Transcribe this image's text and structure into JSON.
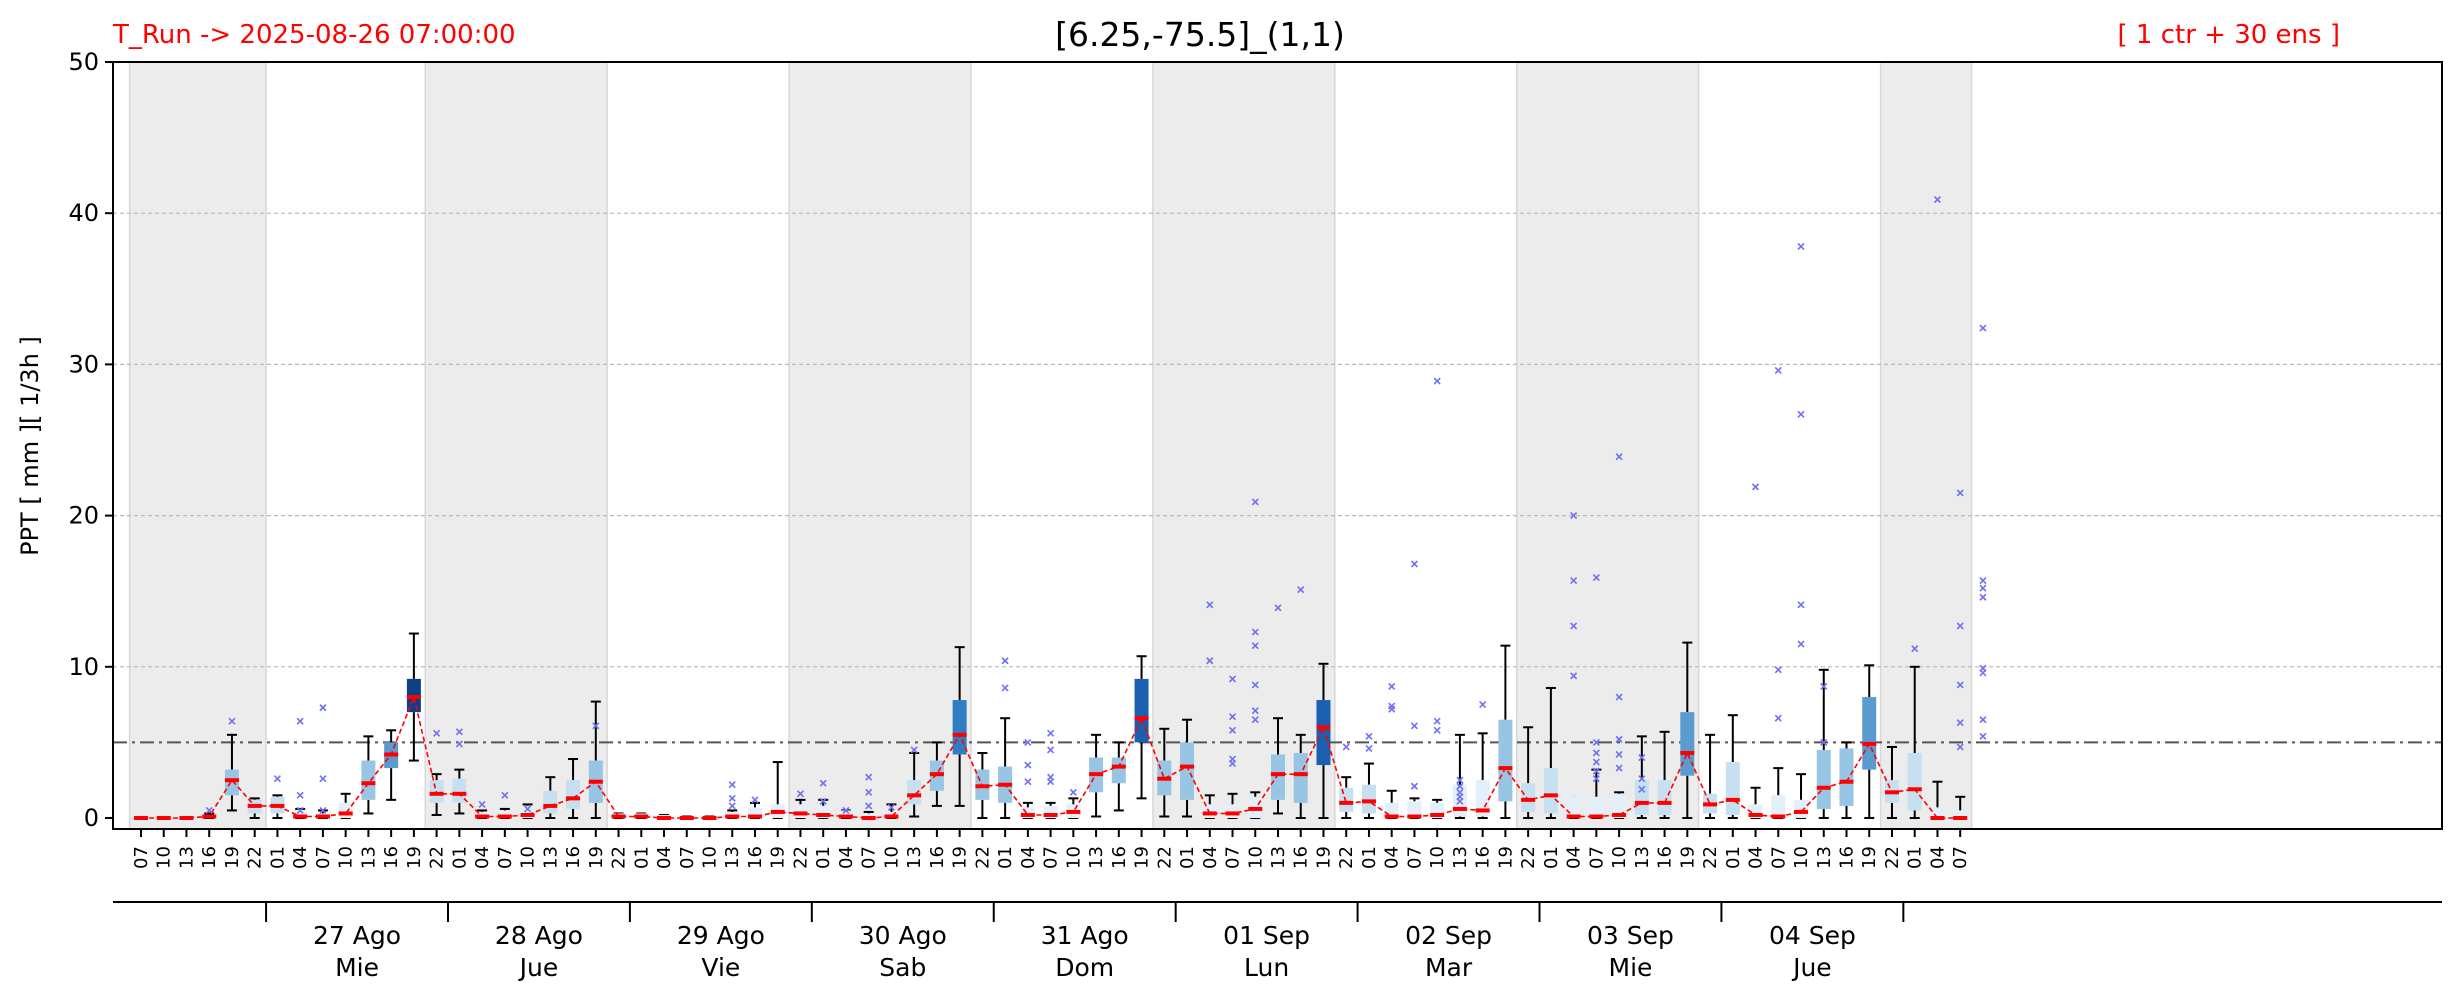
{
  "chart_data": {
    "type": "box",
    "title": "[6.25,-75.5]_(1,1)",
    "run_label": "T_Run -> 2025-08-26  07:00:00",
    "members_label": "[ 1 ctr + 30 ens ]",
    "ylabel": "PPT  [ mm ][ 1/3h ]",
    "ylim": [
      0,
      50
    ],
    "yticks": [
      0,
      10,
      20,
      30,
      40,
      50
    ],
    "threshold": 5,
    "grid": "horizontal dashed",
    "x_hours": [
      "07",
      "10",
      "13",
      "16",
      "19",
      "22",
      "01",
      "04",
      "07",
      "10",
      "13",
      "16",
      "19",
      "22",
      "01",
      "04",
      "07",
      "10",
      "13",
      "16",
      "19",
      "22",
      "01",
      "04",
      "07",
      "10",
      "13",
      "16",
      "19",
      "22",
      "01",
      "04",
      "07",
      "10",
      "13",
      "16",
      "19",
      "22",
      "01",
      "04",
      "07",
      "10",
      "13",
      "16",
      "19",
      "22",
      "01",
      "04",
      "07",
      "10",
      "13",
      "16",
      "19",
      "22",
      "01",
      "04",
      "07",
      "10",
      "13",
      "16",
      "19",
      "22",
      "01",
      "04",
      "07",
      "10",
      "13",
      "16",
      "19",
      "22",
      "01",
      "04",
      "07",
      "10",
      "13",
      "16",
      "19",
      "22",
      "01",
      "04",
      "07"
    ],
    "days": [
      {
        "date": "27 Ago",
        "weekday": "Mie"
      },
      {
        "date": "28 Ago",
        "weekday": "Jue"
      },
      {
        "date": "29 Ago",
        "weekday": "Vie"
      },
      {
        "date": "30 Ago",
        "weekday": "Sab"
      },
      {
        "date": "31 Ago",
        "weekday": "Dom"
      },
      {
        "date": "01 Sep",
        "weekday": "Lun"
      },
      {
        "date": "02 Sep",
        "weekday": "Mar"
      },
      {
        "date": "03 Sep",
        "weekday": "Mie"
      },
      {
        "date": "04 Sep",
        "weekday": "Jue"
      }
    ],
    "median": [
      0,
      0,
      0,
      0.1,
      2.5,
      0.8,
      0.8,
      0.1,
      0.1,
      0.3,
      2.3,
      4.2,
      8.0,
      1.6,
      1.6,
      0.1,
      0.1,
      0.2,
      0.8,
      1.3,
      2.4,
      0.1,
      0.1,
      0,
      0,
      0,
      0.1,
      0.1,
      0.4,
      0.3,
      0.2,
      0.1,
      0,
      0.1,
      1.5,
      2.9,
      5.5,
      2.1,
      2.2,
      0.2,
      0.2,
      0.4,
      2.9,
      3.4,
      6.6,
      2.6,
      3.4,
      0.3,
      0.3,
      0.6,
      2.9,
      2.9,
      6.0,
      1.0,
      1.1,
      0.1,
      0.1,
      0.2,
      0.6,
      0.5,
      3.3,
      1.2,
      1.5,
      0.1,
      0.1,
      0.2,
      1.0,
      1.0,
      4.3,
      0.9,
      1.2,
      0.2,
      0.1,
      0.4,
      2.0,
      2.4,
      4.9,
      1.7,
      1.9,
      0,
      0
    ],
    "q1": [
      0,
      0,
      0,
      0,
      1.5,
      0.3,
      0.3,
      0,
      0,
      0,
      1.2,
      3.3,
      7.0,
      1.0,
      1.0,
      0,
      0,
      0,
      0.3,
      0.6,
      1.0,
      0,
      0,
      0,
      0,
      0,
      0,
      0,
      0,
      0,
      0,
      0,
      0,
      0,
      0.9,
      1.8,
      4.2,
      1.2,
      1.0,
      0,
      0,
      0,
      1.7,
      2.3,
      5.0,
      1.5,
      1.2,
      0,
      0,
      0,
      1.2,
      1.0,
      3.5,
      0.4,
      0.3,
      0,
      0,
      0,
      0.1,
      0.1,
      1.1,
      0.4,
      0.3,
      0,
      0,
      0,
      0.2,
      0.2,
      2.8,
      0.3,
      0.2,
      0,
      0,
      0,
      0.6,
      0.8,
      3.2,
      1.0,
      0.5,
      0,
      0
    ],
    "q3": [
      0,
      0,
      0,
      0.2,
      3.2,
      1.2,
      1.4,
      0.5,
      0.3,
      1.0,
      3.8,
      5.0,
      9.2,
      2.5,
      2.6,
      0.4,
      0.5,
      0.8,
      1.8,
      2.5,
      3.8,
      0.3,
      0.3,
      0.2,
      0.1,
      0.1,
      0.4,
      0.7,
      0.9,
      0.9,
      0.8,
      0.5,
      0.3,
      0.4,
      2.5,
      3.8,
      7.8,
      3.2,
      3.4,
      0.7,
      0.8,
      0.9,
      4.0,
      4.0,
      9.2,
      3.8,
      5.0,
      0.9,
      0.9,
      1.4,
      4.2,
      4.3,
      7.8,
      2.0,
      2.2,
      1.0,
      1.1,
      1.0,
      2.2,
      2.5,
      6.5,
      2.3,
      3.3,
      1.5,
      1.4,
      1.6,
      2.5,
      2.5,
      7.0,
      1.6,
      3.7,
      0.9,
      1.5,
      1.2,
      4.5,
      4.6,
      8.0,
      2.5,
      4.3,
      0.7,
      0.5
    ],
    "whisker_low": [
      0,
      0,
      0,
      0,
      0.5,
      0,
      0,
      0,
      0,
      0,
      0.3,
      1.2,
      3.8,
      0.2,
      0.3,
      0,
      0,
      0,
      0,
      0,
      0,
      0,
      0,
      0,
      0,
      0,
      0,
      0,
      0,
      0,
      0,
      0,
      0,
      0,
      0.1,
      0.8,
      0.8,
      0,
      0,
      0,
      0,
      0,
      0.1,
      0.5,
      1.3,
      0.1,
      0.1,
      0,
      0,
      0,
      0.3,
      0,
      0,
      0,
      0,
      0,
      0,
      0,
      0,
      0,
      0,
      0,
      0,
      0,
      0,
      0,
      0,
      0,
      0,
      0,
      0,
      0,
      0,
      0,
      0,
      0,
      0,
      0,
      0,
      0,
      0
    ],
    "whisker_high": [
      0,
      0,
      0,
      0.3,
      5.5,
      1.3,
      1.5,
      0.6,
      0.5,
      1.6,
      5.4,
      5.8,
      12.2,
      2.9,
      3.2,
      0.5,
      0.6,
      0.9,
      2.7,
      3.9,
      7.7,
      0.3,
      0.3,
      0.2,
      0.1,
      0.1,
      0.5,
      1.0,
      3.7,
      1.2,
      1.2,
      0.5,
      0.4,
      0.9,
      4.3,
      5.0,
      11.3,
      4.3,
      6.6,
      1.0,
      1.0,
      1.3,
      5.5,
      5.0,
      10.7,
      5.9,
      6.5,
      1.5,
      1.6,
      1.7,
      6.6,
      5.5,
      10.2,
      2.7,
      3.6,
      1.8,
      1.3,
      1.2,
      5.5,
      5.6,
      11.4,
      6.0,
      8.6,
      1.0,
      3.2,
      1.7,
      5.4,
      5.7,
      11.6,
      5.5,
      6.8,
      2.0,
      3.3,
      2.9,
      9.8,
      5.0,
      10.1,
      4.7,
      10.0,
      2.4,
      1.4
    ],
    "outliers": [
      [
        3,
        0.5
      ],
      [
        4,
        6.4
      ],
      [
        6,
        2.6
      ],
      [
        7,
        6.4
      ],
      [
        7,
        1.5
      ],
      [
        7,
        0.5
      ],
      [
        8,
        7.3
      ],
      [
        8,
        2.6
      ],
      [
        8,
        0.5
      ],
      [
        13,
        5.6
      ],
      [
        14,
        5.7
      ],
      [
        14,
        4.9
      ],
      [
        15,
        0.9
      ],
      [
        16,
        1.5
      ],
      [
        17,
        0.6
      ],
      [
        20,
        6.1
      ],
      [
        26,
        2.2
      ],
      [
        26,
        1.3
      ],
      [
        26,
        0.8
      ],
      [
        27,
        1.2
      ],
      [
        29,
        1.6
      ],
      [
        30,
        2.3
      ],
      [
        30,
        1.1
      ],
      [
        31,
        0.5
      ],
      [
        32,
        2.7
      ],
      [
        32,
        1.7
      ],
      [
        32,
        0.8
      ],
      [
        33,
        0.7
      ],
      [
        34,
        4.5
      ],
      [
        38,
        10.4
      ],
      [
        38,
        8.6
      ],
      [
        39,
        5.0
      ],
      [
        39,
        3.5
      ],
      [
        39,
        2.4
      ],
      [
        40,
        5.6
      ],
      [
        40,
        4.5
      ],
      [
        40,
        2.7
      ],
      [
        40,
        2.4
      ],
      [
        41,
        1.7
      ],
      [
        47,
        14.1
      ],
      [
        47,
        10.4
      ],
      [
        48,
        9.2
      ],
      [
        48,
        6.7
      ],
      [
        48,
        5.8
      ],
      [
        48,
        3.9
      ],
      [
        48,
        3.6
      ],
      [
        49,
        20.9
      ],
      [
        49,
        12.3
      ],
      [
        49,
        11.4
      ],
      [
        49,
        8.8
      ],
      [
        49,
        7.1
      ],
      [
        49,
        6.5
      ],
      [
        50,
        13.9
      ],
      [
        51,
        15.1
      ],
      [
        53,
        4.7
      ],
      [
        54,
        5.4
      ],
      [
        54,
        4.6
      ],
      [
        55,
        8.7
      ],
      [
        55,
        7.4
      ],
      [
        55,
        7.2
      ],
      [
        56,
        16.8
      ],
      [
        56,
        6.1
      ],
      [
        56,
        2.1
      ],
      [
        57,
        28.9
      ],
      [
        57,
        6.4
      ],
      [
        57,
        5.8
      ],
      [
        58,
        2.5
      ],
      [
        58,
        2.1
      ],
      [
        58,
        1.7
      ],
      [
        58,
        1.4
      ],
      [
        58,
        1.1
      ],
      [
        59,
        7.5
      ],
      [
        63,
        20.0
      ],
      [
        63,
        15.7
      ],
      [
        63,
        12.7
      ],
      [
        63,
        9.4
      ],
      [
        64,
        15.9
      ],
      [
        64,
        5.0
      ],
      [
        64,
        4.3
      ],
      [
        64,
        3.7
      ],
      [
        64,
        3.1
      ],
      [
        64,
        2.6
      ],
      [
        65,
        23.9
      ],
      [
        65,
        8.0
      ],
      [
        65,
        5.2
      ],
      [
        65,
        4.2
      ],
      [
        65,
        3.3
      ],
      [
        66,
        4.0
      ],
      [
        66,
        2.6
      ],
      [
        66,
        1.9
      ],
      [
        71,
        21.9
      ],
      [
        72,
        29.6
      ],
      [
        72,
        9.8
      ],
      [
        72,
        6.6
      ],
      [
        73,
        37.8
      ],
      [
        73,
        26.7
      ],
      [
        73,
        14.1
      ],
      [
        73,
        11.5
      ],
      [
        74,
        8.7
      ],
      [
        74,
        5.0
      ],
      [
        78,
        11.2
      ],
      [
        79,
        40.9
      ],
      [
        80,
        21.5
      ],
      [
        80,
        12.7
      ],
      [
        80,
        8.8
      ],
      [
        80,
        6.3
      ],
      [
        80,
        4.7
      ],
      [
        81,
        32.4
      ],
      [
        81,
        15.7
      ],
      [
        81,
        15.2
      ],
      [
        81,
        14.6
      ],
      [
        81,
        9.9
      ],
      [
        81,
        9.6
      ],
      [
        81,
        6.5
      ],
      [
        81,
        5.4
      ]
    ]
  }
}
